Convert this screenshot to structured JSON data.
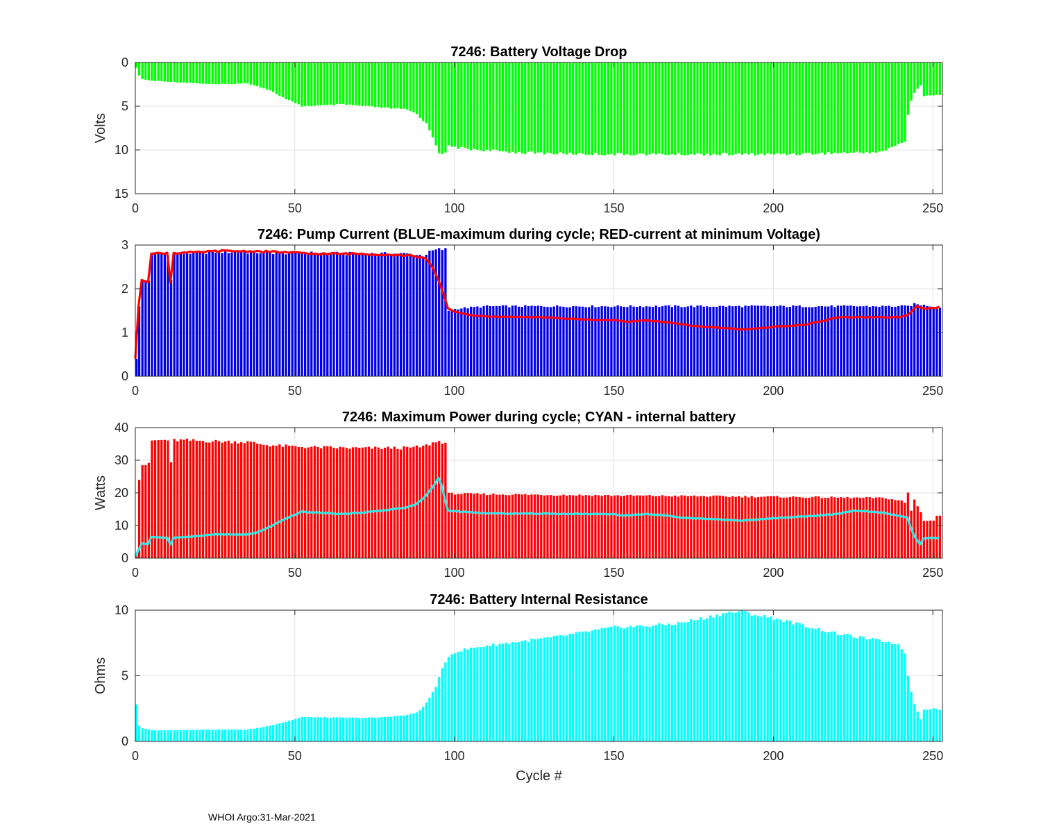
{
  "footer": "WHOI Argo:31-Mar-2021",
  "colors": {
    "voltage": "#00ff00",
    "pump_max": "#0000e6",
    "pump_min_line": "#ff0000",
    "power": "#ff0000",
    "power_internal": "#33e6e6",
    "resistance": "#00ffff"
  },
  "chart_data": [
    {
      "type": "bar",
      "title": "7246: Battery Voltage Drop",
      "xlabel": "",
      "ylabel": "Volts",
      "xlim": [
        0,
        253
      ],
      "ylim": [
        0,
        15
      ],
      "y_reversed": true,
      "x_ticks": [
        "0",
        "50",
        "100",
        "150",
        "200",
        "250"
      ],
      "y_ticks": [
        "0",
        "5",
        "10",
        "15"
      ],
      "grid": true,
      "series": [
        {
          "kind": "bar",
          "color": "#00ff00",
          "keyframes": [
            [
              0,
              0.6
            ],
            [
              1,
              1.5
            ],
            [
              2,
              1.9
            ],
            [
              5,
              2.1
            ],
            [
              10,
              2.2
            ],
            [
              25,
              2.5
            ],
            [
              35,
              2.4
            ],
            [
              38,
              2.7
            ],
            [
              42,
              3.2
            ],
            [
              47,
              4.2
            ],
            [
              52,
              5.0
            ],
            [
              60,
              4.9
            ],
            [
              65,
              4.8
            ],
            [
              75,
              5.1
            ],
            [
              85,
              5.4
            ],
            [
              88,
              5.9
            ],
            [
              91,
              7.0
            ],
            [
              93,
              8.5
            ],
            [
              95,
              10.3
            ],
            [
              97,
              10.4
            ],
            [
              98,
              9.6
            ],
            [
              100,
              9.7
            ],
            [
              104,
              9.9
            ],
            [
              112,
              10.1
            ],
            [
              120,
              10.3
            ],
            [
              130,
              10.4
            ],
            [
              150,
              10.5
            ],
            [
              200,
              10.5
            ],
            [
              228,
              10.3
            ],
            [
              234,
              10.2
            ],
            [
              238,
              9.5
            ],
            [
              241,
              9.0
            ],
            [
              242,
              6.0
            ],
            [
              243,
              4.4
            ],
            [
              244,
              3.5
            ],
            [
              245,
              3.0
            ],
            [
              246,
              2.6
            ],
            [
              247,
              3.8
            ],
            [
              252,
              3.7
            ],
            [
              253,
              3.6
            ]
          ]
        }
      ]
    },
    {
      "type": "bar",
      "title": "7246: Pump Current (BLUE-maximum during cycle; RED-current at minimum Voltage)",
      "xlabel": "",
      "ylabel": "",
      "xlim": [
        0,
        253
      ],
      "ylim": [
        0,
        3
      ],
      "x_ticks": [
        "0",
        "50",
        "100",
        "150",
        "200",
        "250"
      ],
      "y_ticks": [
        "0",
        "1",
        "2",
        "3"
      ],
      "grid": true,
      "series": [
        {
          "kind": "bar",
          "color": "#0000e6",
          "keyframes": [
            [
              0,
              0.4
            ],
            [
              1,
              1.6
            ],
            [
              2,
              2.2
            ],
            [
              4,
              2.2
            ],
            [
              5,
              2.8
            ],
            [
              10,
              2.8
            ],
            [
              11,
              2.2
            ],
            [
              12,
              2.8
            ],
            [
              25,
              2.85
            ],
            [
              50,
              2.82
            ],
            [
              70,
              2.8
            ],
            [
              85,
              2.8
            ],
            [
              90,
              2.76
            ],
            [
              93,
              2.87
            ],
            [
              95,
              2.9
            ],
            [
              97,
              2.9
            ],
            [
              98,
              1.5
            ],
            [
              101,
              1.55
            ],
            [
              110,
              1.6
            ],
            [
              200,
              1.6
            ],
            [
              242,
              1.6
            ],
            [
              244,
              1.65
            ],
            [
              250,
              1.6
            ],
            [
              253,
              1.55
            ]
          ]
        },
        {
          "kind": "line",
          "color": "#ff0000",
          "keyframes": [
            [
              0,
              0.4
            ],
            [
              1,
              1.6
            ],
            [
              2,
              2.2
            ],
            [
              4,
              2.15
            ],
            [
              5,
              2.8
            ],
            [
              10,
              2.82
            ],
            [
              11,
              2.15
            ],
            [
              12,
              2.82
            ],
            [
              20,
              2.83
            ],
            [
              25,
              2.86
            ],
            [
              35,
              2.86
            ],
            [
              45,
              2.84
            ],
            [
              55,
              2.8
            ],
            [
              70,
              2.8
            ],
            [
              80,
              2.78
            ],
            [
              88,
              2.75
            ],
            [
              91,
              2.68
            ],
            [
              93,
              2.5
            ],
            [
              95,
              2.2
            ],
            [
              97,
              1.8
            ],
            [
              98,
              1.55
            ],
            [
              100,
              1.48
            ],
            [
              105,
              1.4
            ],
            [
              110,
              1.36
            ],
            [
              120,
              1.36
            ],
            [
              130,
              1.34
            ],
            [
              140,
              1.3
            ],
            [
              150,
              1.28
            ],
            [
              155,
              1.25
            ],
            [
              160,
              1.28
            ],
            [
              168,
              1.22
            ],
            [
              175,
              1.15
            ],
            [
              185,
              1.1
            ],
            [
              190,
              1.07
            ],
            [
              195,
              1.09
            ],
            [
              200,
              1.13
            ],
            [
              210,
              1.18
            ],
            [
              215,
              1.25
            ],
            [
              220,
              1.35
            ],
            [
              235,
              1.35
            ],
            [
              240,
              1.35
            ],
            [
              242,
              1.4
            ],
            [
              245,
              1.6
            ],
            [
              247,
              1.55
            ],
            [
              250,
              1.55
            ],
            [
              252,
              1.58
            ],
            [
              253,
              1.55
            ]
          ]
        }
      ]
    },
    {
      "type": "bar",
      "title": "7246: Maximum Power during cycle; CYAN - internal battery",
      "xlabel": "",
      "ylabel": "Watts",
      "xlim": [
        0,
        253
      ],
      "ylim": [
        0,
        40
      ],
      "x_ticks": [
        "0",
        "50",
        "100",
        "150",
        "200",
        "250"
      ],
      "y_ticks": [
        "0",
        "10",
        "20",
        "30",
        "40"
      ],
      "grid": true,
      "series": [
        {
          "kind": "bar",
          "color": "#ff0000",
          "keyframes": [
            [
              0,
              1.0
            ],
            [
              1,
              24
            ],
            [
              2,
              28.5
            ],
            [
              4,
              28.8
            ],
            [
              5,
              36
            ],
            [
              10,
              36.2
            ],
            [
              11,
              29
            ],
            [
              12,
              36.2
            ],
            [
              25,
              35.8
            ],
            [
              35,
              35.6
            ],
            [
              40,
              34.8
            ],
            [
              45,
              34.4
            ],
            [
              55,
              34.0
            ],
            [
              70,
              33.7
            ],
            [
              85,
              33.8
            ],
            [
              90,
              34.2
            ],
            [
              93,
              35.3
            ],
            [
              95,
              35.8
            ],
            [
              97,
              35.4
            ],
            [
              98,
              19.8
            ],
            [
              110,
              19.6
            ],
            [
              150,
              19.2
            ],
            [
              200,
              18.8
            ],
            [
              235,
              18.4
            ],
            [
              240,
              17.5
            ],
            [
              241,
              17.0
            ],
            [
              242,
              20.0
            ],
            [
              243,
              14.5
            ],
            [
              244,
              18.0
            ],
            [
              245,
              16.0
            ],
            [
              246,
              14.0
            ],
            [
              247,
              11.5
            ],
            [
              250,
              11.5
            ],
            [
              251,
              13.0
            ],
            [
              253,
              12.8
            ]
          ]
        },
        {
          "kind": "line",
          "color": "#33e6e6",
          "keyframes": [
            [
              0,
              0.5
            ],
            [
              1,
              2.5
            ],
            [
              2,
              4.5
            ],
            [
              4,
              4.3
            ],
            [
              5,
              6.5
            ],
            [
              10,
              6.2
            ],
            [
              11,
              4.2
            ],
            [
              12,
              6.2
            ],
            [
              20,
              6.8
            ],
            [
              25,
              7.3
            ],
            [
              35,
              7.2
            ],
            [
              38,
              7.8
            ],
            [
              42,
              9.5
            ],
            [
              47,
              12.0
            ],
            [
              52,
              14.2
            ],
            [
              60,
              13.8
            ],
            [
              65,
              13.5
            ],
            [
              75,
              14.3
            ],
            [
              85,
              15.5
            ],
            [
              88,
              16.5
            ],
            [
              91,
              19.0
            ],
            [
              93,
              21.5
            ],
            [
              95,
              24.5
            ],
            [
              96,
              22.5
            ],
            [
              97,
              18.0
            ],
            [
              98,
              14.5
            ],
            [
              110,
              13.7
            ],
            [
              150,
              13.5
            ],
            [
              153,
              13.0
            ],
            [
              160,
              13.5
            ],
            [
              165,
              13.2
            ],
            [
              170,
              12.5
            ],
            [
              180,
              12.0
            ],
            [
              190,
              11.5
            ],
            [
              200,
              12.2
            ],
            [
              210,
              12.8
            ],
            [
              220,
              13.5
            ],
            [
              225,
              14.5
            ],
            [
              230,
              14.3
            ],
            [
              235,
              13.8
            ],
            [
              240,
              12.8
            ],
            [
              242,
              12.5
            ],
            [
              243,
              9.5
            ],
            [
              244,
              7.0
            ],
            [
              245,
              5.5
            ],
            [
              246,
              4.2
            ],
            [
              247,
              6.0
            ],
            [
              250,
              6.2
            ],
            [
              253,
              6.0
            ]
          ]
        }
      ]
    },
    {
      "type": "bar",
      "title": "7246: Battery Internal Resistance",
      "xlabel": "Cycle #",
      "ylabel": "Ohms",
      "xlim": [
        0,
        253
      ],
      "ylim": [
        0,
        10
      ],
      "x_ticks": [
        "0",
        "50",
        "100",
        "150",
        "200",
        "250"
      ],
      "y_ticks": [
        "0",
        "5",
        "10"
      ],
      "grid": true,
      "series": [
        {
          "kind": "bar",
          "color": "#00ffff",
          "keyframes": [
            [
              0,
              2.8
            ],
            [
              1,
              1.2
            ],
            [
              2,
              1.0
            ],
            [
              5,
              0.85
            ],
            [
              10,
              0.85
            ],
            [
              20,
              0.9
            ],
            [
              35,
              0.9
            ],
            [
              38,
              1.0
            ],
            [
              42,
              1.2
            ],
            [
              47,
              1.5
            ],
            [
              52,
              1.85
            ],
            [
              65,
              1.8
            ],
            [
              75,
              1.8
            ],
            [
              85,
              2.0
            ],
            [
              88,
              2.2
            ],
            [
              90,
              2.6
            ],
            [
              92,
              3.3
            ],
            [
              94,
              4.2
            ],
            [
              96,
              5.5
            ],
            [
              98,
              6.5
            ],
            [
              100,
              6.8
            ],
            [
              103,
              7.0
            ],
            [
              110,
              7.3
            ],
            [
              120,
              7.6
            ],
            [
              130,
              7.9
            ],
            [
              140,
              8.3
            ],
            [
              150,
              8.7
            ],
            [
              160,
              8.8
            ],
            [
              170,
              9.0
            ],
            [
              178,
              9.4
            ],
            [
              185,
              9.8
            ],
            [
              190,
              9.9
            ],
            [
              195,
              9.6
            ],
            [
              200,
              9.4
            ],
            [
              205,
              9.1
            ],
            [
              210,
              8.8
            ],
            [
              220,
              8.2
            ],
            [
              230,
              7.8
            ],
            [
              238,
              7.5
            ],
            [
              240,
              7.1
            ],
            [
              241,
              6.7
            ],
            [
              242,
              5.0
            ],
            [
              243,
              3.8
            ],
            [
              244,
              2.9
            ],
            [
              245,
              2.3
            ],
            [
              246,
              1.7
            ],
            [
              247,
              2.4
            ],
            [
              250,
              2.5
            ],
            [
              253,
              2.4
            ]
          ]
        }
      ]
    }
  ]
}
